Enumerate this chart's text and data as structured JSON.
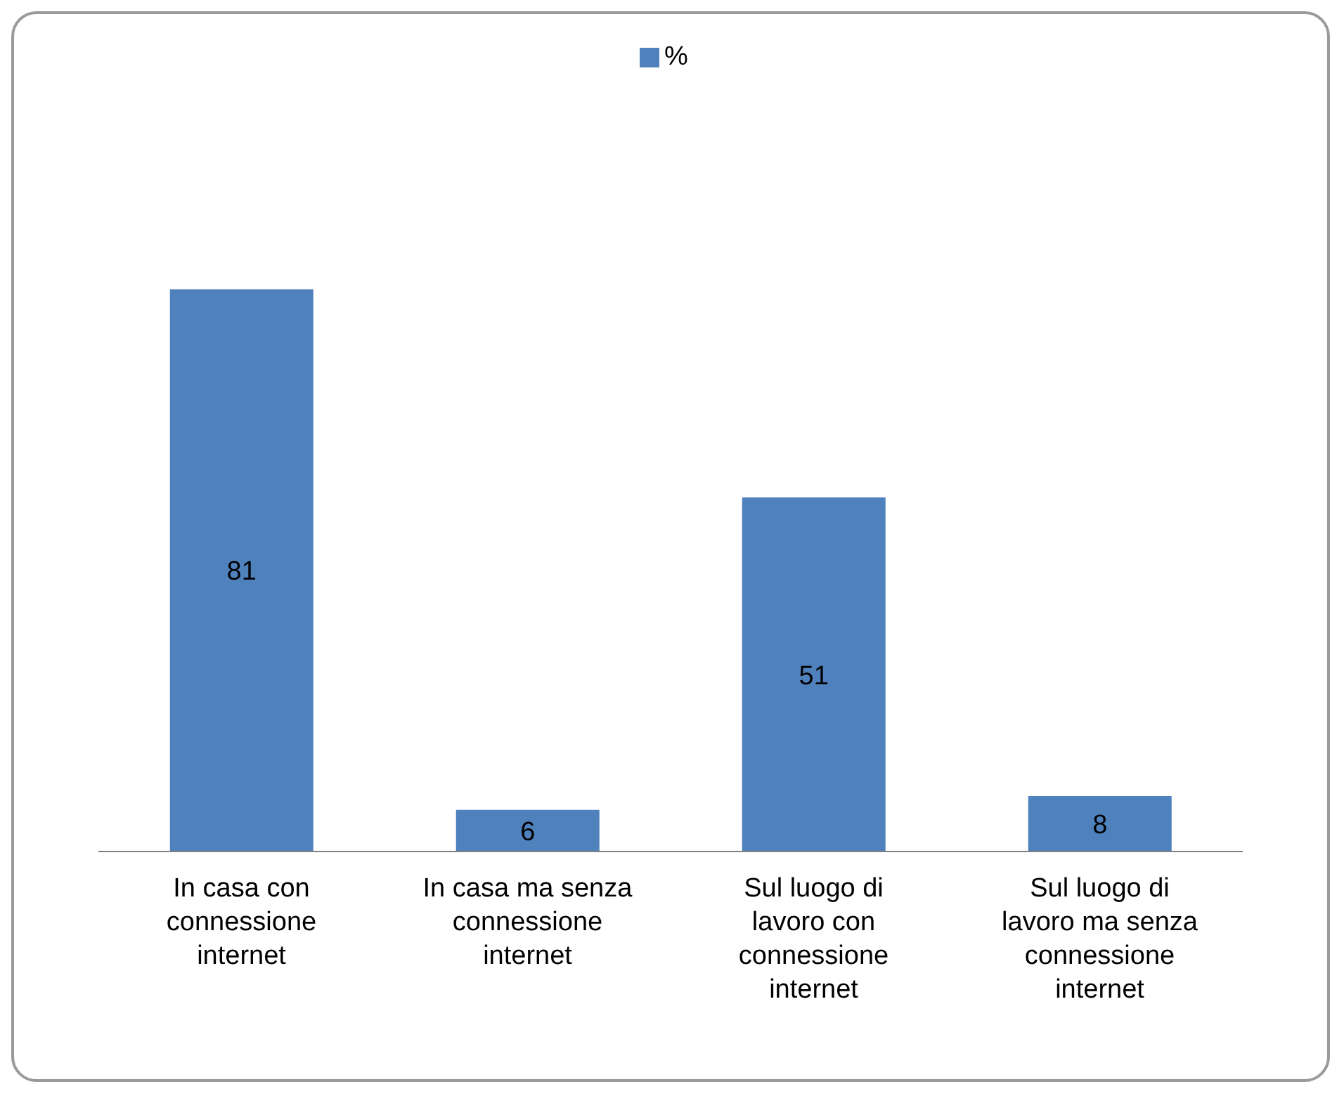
{
  "chart_data": {
    "type": "bar",
    "categories": [
      "In casa con connessione internet",
      "In casa ma senza connessione internet",
      "Sul luogo di lavoro con connessione internet",
      "Sul luogo di lavoro ma senza connessione internet"
    ],
    "series": [
      {
        "name": "%",
        "color": "#4f81bd",
        "values": [
          81,
          6,
          51,
          8
        ]
      }
    ],
    "data_labels": true,
    "legend": "top",
    "grid": false
  }
}
